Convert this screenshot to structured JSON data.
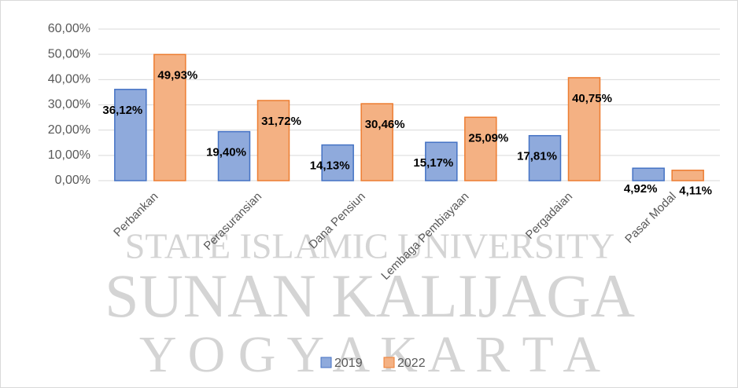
{
  "chart_data": {
    "type": "bar",
    "watermark": [
      "STATE ISLAMIC UNIVERSITY",
      "SUNAN KALIJAGA",
      "Y O G Y A K A R T A"
    ],
    "categories": [
      "Perbankan",
      "Perasuransian",
      "Dana Pensiun",
      "Lembaga Pembiayaan",
      "Pergadaian",
      "Pasar Modal"
    ],
    "series": [
      {
        "name": "2019",
        "color": "#8faadc",
        "edge": "#4472c4",
        "values": [
          36.12,
          19.4,
          14.13,
          15.17,
          17.81,
          4.92
        ],
        "value_labels": [
          "36,12%",
          "19,40%",
          "14,13%",
          "15,17%",
          "17,81%",
          "4,92%"
        ]
      },
      {
        "name": "2022",
        "color": "#f4b183",
        "edge": "#ed7d31",
        "values": [
          49.93,
          31.72,
          30.46,
          25.09,
          40.75,
          4.11
        ],
        "value_labels": [
          "49,93%",
          "31,72%",
          "30,46%",
          "25,09%",
          "40,75%",
          "4,11%"
        ]
      }
    ],
    "ylim": [
      0,
      60
    ],
    "yticks": [
      {
        "value": 0,
        "label": "0,00%"
      },
      {
        "value": 10,
        "label": "10,00%"
      },
      {
        "value": 20,
        "label": "20,00%"
      },
      {
        "value": 30,
        "label": "30,00%"
      },
      {
        "value": 40,
        "label": "40,00%"
      },
      {
        "value": 50,
        "label": "50,00%"
      },
      {
        "value": 60,
        "label": "60,00%"
      }
    ],
    "grid": true,
    "legend": "bottom"
  }
}
